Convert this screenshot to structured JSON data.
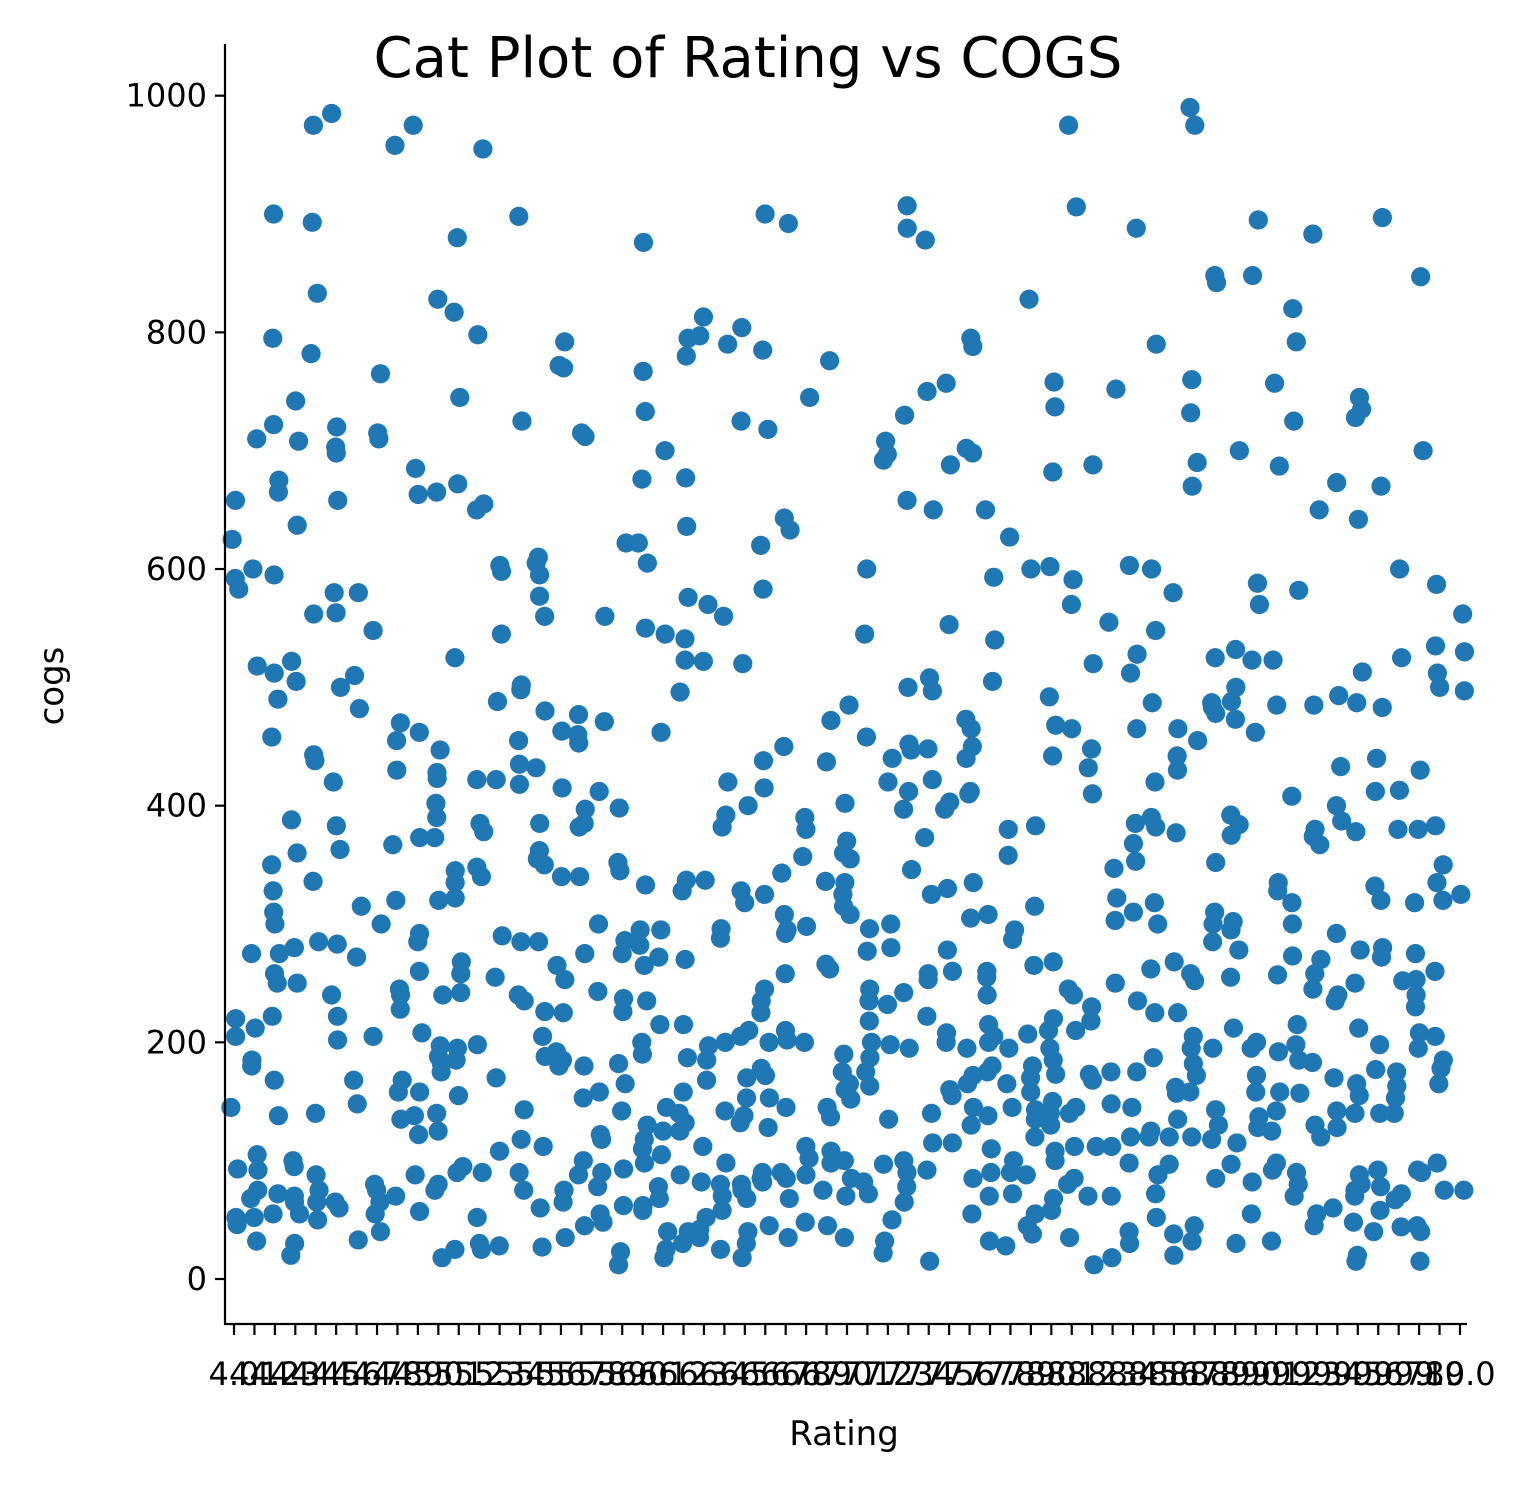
{
  "chart_data": {
    "type": "scatter",
    "title": "Cat Plot of Rating vs COGS",
    "xlabel": "Rating",
    "ylabel": "cogs",
    "point_color": "#1f77b4",
    "grid": false,
    "legend": "none",
    "ylim": [
      -40,
      1040
    ],
    "yticks": [
      0,
      200,
      400,
      600,
      800,
      1000
    ],
    "categories": [
      "4.0",
      "4.1",
      "4.2",
      "4.3",
      "4.4",
      "4.5",
      "4.6",
      "4.7",
      "4.8",
      "4.9",
      "5.0",
      "5.1",
      "5.2",
      "5.3",
      "5.4",
      "5.5",
      "5.6",
      "5.7",
      "5.8",
      "5.9",
      "6.0",
      "6.1",
      "6.2",
      "6.3",
      "6.4",
      "6.5",
      "6.6",
      "6.7",
      "6.8",
      "6.9",
      "7.0",
      "7.1",
      "7.2",
      "7.3",
      "7.4",
      "7.5",
      "7.6",
      "7.7",
      "7.8",
      "7.9",
      "8.0",
      "8.1",
      "8.2",
      "8.3",
      "8.4",
      "8.5",
      "8.6",
      "8.7",
      "8.8",
      "8.9",
      "9.0",
      "9.1",
      "9.2",
      "9.3",
      "9.4",
      "9.5",
      "9.6",
      "9.7",
      "9.8",
      "9.9",
      "10.0"
    ],
    "tick_labels": [
      "4.0",
      "4.1",
      "4.2",
      "4.3",
      "4.4",
      "4.5",
      "4.6",
      "4.7",
      "4.8",
      "4.9",
      "5.0",
      "5.1",
      "5.2",
      "5.3",
      "5.4",
      "5.5",
      "5.6",
      "5.7",
      "5.8",
      "5.9",
      "6.0",
      "6.1",
      "6.2",
      "6.3",
      "6.4",
      "6.5",
      "6.6",
      "6.7",
      "6.8",
      "6.9",
      "7.0",
      "7.1",
      "7.2",
      "7.3",
      "7.4",
      "7.5",
      "7.6",
      "7.7",
      "7.8",
      "7.9",
      "8.0",
      "8.1",
      "8.2",
      "8.3",
      "8.4",
      "8.5",
      "8.6",
      "8.7",
      "8.8",
      "8.9",
      "9.0",
      "9.1",
      "9.2",
      "9.3",
      "9.4",
      "9.5",
      "9.6",
      "9.7",
      "9.8",
      "9.9",
      "10.0"
    ],
    "values": [
      [
        658,
        625,
        592,
        583,
        220,
        205,
        145,
        93,
        52,
        46
      ],
      [
        710,
        600,
        518,
        275,
        212,
        185,
        180,
        105,
        92,
        75,
        68,
        52,
        32
      ],
      [
        900,
        795,
        722,
        675,
        665,
        595,
        512,
        490,
        458,
        350,
        328,
        310,
        300,
        275,
        258,
        250,
        222,
        168,
        138,
        72,
        55
      ],
      [
        742,
        708,
        637,
        522,
        505,
        388,
        360,
        280,
        250,
        100,
        95,
        70,
        65,
        55,
        30,
        20
      ],
      [
        975,
        893,
        833,
        782,
        562,
        443,
        438,
        336,
        285,
        140,
        88,
        75,
        65,
        50
      ],
      [
        985,
        720,
        703,
        698,
        658,
        580,
        563,
        500,
        420,
        383,
        363,
        283,
        240,
        222,
        202,
        65,
        60
      ],
      [
        580,
        510,
        482,
        315,
        272,
        168,
        148,
        33
      ],
      [
        765,
        715,
        710,
        548,
        300,
        205,
        80,
        75,
        65,
        55,
        40
      ],
      [
        958,
        470,
        455,
        430,
        367,
        320,
        245,
        240,
        228,
        168,
        158,
        135,
        70
      ],
      [
        975,
        685,
        663,
        462,
        373,
        292,
        285,
        260,
        208,
        158,
        138,
        122,
        88,
        57
      ],
      [
        828,
        665,
        447,
        428,
        423,
        402,
        390,
        373,
        320,
        240,
        197,
        188,
        182,
        175,
        140,
        125,
        80,
        75,
        18
      ],
      [
        880,
        817,
        745,
        672,
        525,
        345,
        335,
        322,
        268,
        258,
        242,
        195,
        185,
        155,
        95,
        90,
        25
      ],
      [
        955,
        798,
        655,
        650,
        422,
        385,
        378,
        348,
        340,
        198,
        90,
        52,
        30,
        25
      ],
      [
        603,
        598,
        545,
        488,
        422,
        290,
        255,
        170,
        108,
        28
      ],
      [
        898,
        725,
        502,
        498,
        455,
        435,
        418,
        285,
        240,
        235,
        143,
        118,
        90,
        75
      ],
      [
        610,
        605,
        595,
        577,
        560,
        480,
        432,
        385,
        362,
        355,
        350,
        285,
        226,
        205,
        188,
        112,
        60,
        27
      ],
      [
        792,
        772,
        770,
        463,
        415,
        340,
        265,
        253,
        225,
        192,
        185,
        180,
        75,
        65,
        35
      ],
      [
        715,
        712,
        477,
        460,
        453,
        397,
        385,
        382,
        340,
        275,
        180,
        153,
        100,
        88,
        45
      ],
      [
        560,
        471,
        412,
        300,
        243,
        158,
        122,
        118,
        90,
        78,
        55,
        48
      ],
      [
        622,
        398,
        352,
        345,
        286,
        275,
        237,
        226,
        182,
        165,
        142,
        93,
        62,
        23,
        12
      ],
      [
        876,
        767,
        733,
        676,
        622,
        605,
        550,
        333,
        295,
        282,
        265,
        235,
        200,
        190,
        130,
        118,
        110,
        98,
        62,
        58
      ],
      [
        700,
        545,
        462,
        295,
        272,
        215,
        145,
        125,
        105,
        78,
        68,
        40,
        25,
        18
      ],
      [
        795,
        780,
        677,
        636,
        576,
        541,
        523,
        496,
        337,
        328,
        270,
        215,
        187,
        158,
        140,
        132,
        125,
        88,
        40,
        30
      ],
      [
        813,
        797,
        570,
        522,
        337,
        197,
        185,
        168,
        112,
        82,
        52,
        42,
        35
      ],
      [
        790,
        560,
        420,
        392,
        382,
        296,
        288,
        200,
        142,
        98,
        80,
        70,
        58,
        25
      ],
      [
        804,
        725,
        520,
        400,
        328,
        318,
        210,
        205,
        170,
        153,
        138,
        132,
        80,
        75,
        68,
        40,
        30,
        18
      ],
      [
        900,
        785,
        718,
        620,
        583,
        438,
        415,
        325,
        245,
        235,
        225,
        200,
        178,
        172,
        153,
        128,
        90,
        85,
        82,
        45
      ],
      [
        892,
        643,
        633,
        450,
        343,
        308,
        295,
        292,
        258,
        210,
        202,
        145,
        90,
        85,
        68,
        35
      ],
      [
        745,
        390,
        380,
        357,
        298,
        200,
        112,
        102,
        88,
        48
      ],
      [
        776,
        472,
        437,
        336,
        266,
        262,
        145,
        137,
        108,
        98,
        75,
        45
      ],
      [
        485,
        402,
        370,
        360,
        355,
        335,
        325,
        315,
        308,
        190,
        175,
        165,
        160,
        152,
        100,
        85,
        70,
        35
      ],
      [
        600,
        545,
        458,
        296,
        277,
        245,
        235,
        218,
        200,
        187,
        175,
        163,
        82,
        72
      ],
      [
        708,
        697,
        692,
        440,
        420,
        300,
        280,
        232,
        198,
        135,
        97,
        50,
        32,
        22
      ],
      [
        907,
        888,
        730,
        658,
        500,
        452,
        447,
        412,
        397,
        346,
        242,
        195,
        100,
        90,
        78,
        65
      ],
      [
        878,
        750,
        650,
        508,
        497,
        448,
        422,
        373,
        325,
        258,
        253,
        222,
        140,
        115,
        92,
        15
      ],
      [
        757,
        688,
        553,
        403,
        397,
        330,
        278,
        260,
        208,
        200,
        160,
        155,
        115
      ],
      [
        795,
        788,
        702,
        698,
        473,
        465,
        450,
        440,
        412,
        410,
        335,
        305,
        195,
        172,
        165,
        145,
        130,
        85,
        55
      ],
      [
        650,
        593,
        540,
        505,
        308,
        260,
        255,
        240,
        215,
        205,
        200,
        180,
        175,
        138,
        110,
        90,
        70,
        32
      ],
      [
        627,
        380,
        358,
        295,
        287,
        195,
        165,
        145,
        100,
        90,
        72,
        28
      ],
      [
        828,
        600,
        383,
        315,
        265,
        207,
        180,
        170,
        158,
        143,
        135,
        120,
        88,
        55,
        45,
        38
      ],
      [
        758,
        737,
        682,
        602,
        492,
        468,
        442,
        268,
        220,
        210,
        195,
        185,
        173,
        150,
        140,
        130,
        108,
        100,
        68,
        58
      ],
      [
        975,
        906,
        591,
        570,
        465,
        245,
        240,
        210,
        145,
        140,
        112,
        85,
        80,
        35
      ],
      [
        688,
        520,
        448,
        432,
        410,
        230,
        218,
        173,
        168,
        112,
        70,
        12
      ],
      [
        752,
        555,
        347,
        322,
        303,
        250,
        175,
        148,
        112,
        70,
        18
      ],
      [
        888,
        603,
        528,
        512,
        465,
        385,
        368,
        353,
        310,
        235,
        175,
        145,
        120,
        98,
        40,
        30
      ],
      [
        790,
        600,
        548,
        487,
        420,
        390,
        382,
        318,
        300,
        262,
        225,
        187,
        125,
        120,
        88,
        72,
        52
      ],
      [
        580,
        465,
        442,
        430,
        377,
        268,
        225,
        162,
        157,
        135,
        120,
        97,
        38,
        20
      ],
      [
        990,
        975,
        760,
        732,
        690,
        670,
        455,
        258,
        252,
        205,
        195,
        182,
        172,
        158,
        120,
        45,
        32
      ],
      [
        848,
        842,
        525,
        487,
        483,
        478,
        352,
        310,
        300,
        285,
        195,
        143,
        130,
        118,
        85
      ],
      [
        700,
        532,
        500,
        488,
        473,
        392,
        384,
        375,
        302,
        295,
        278,
        255,
        212,
        115,
        97,
        30
      ],
      [
        895,
        848,
        588,
        570,
        523,
        462,
        200,
        195,
        172,
        158,
        137,
        128,
        82,
        55
      ],
      [
        757,
        687,
        523,
        485,
        335,
        328,
        257,
        192,
        158,
        142,
        125,
        98,
        92,
        32
      ],
      [
        820,
        792,
        725,
        582,
        408,
        318,
        300,
        273,
        215,
        198,
        185,
        157,
        90,
        80,
        70
      ],
      [
        883,
        650,
        485,
        380,
        374,
        367,
        270,
        258,
        245,
        183,
        130,
        120,
        55,
        45
      ],
      [
        673,
        493,
        433,
        400,
        387,
        292,
        240,
        235,
        170,
        142,
        128,
        60
      ],
      [
        745,
        735,
        728,
        642,
        513,
        487,
        378,
        278,
        250,
        212,
        165,
        155,
        140,
        88,
        80,
        75,
        70,
        48,
        20,
        15
      ],
      [
        897,
        670,
        483,
        440,
        412,
        332,
        320,
        280,
        272,
        198,
        177,
        140,
        92,
        78,
        58,
        40
      ],
      [
        600,
        525,
        413,
        380,
        252,
        175,
        163,
        153,
        140,
        72,
        67,
        44
      ],
      [
        847,
        700,
        430,
        380,
        318,
        275,
        253,
        240,
        230,
        208,
        195,
        92,
        90,
        45,
        40,
        15
      ],
      [
        587,
        535,
        512,
        500,
        383,
        350,
        335,
        320,
        260,
        205,
        185,
        178,
        165,
        98,
        75
      ],
      [
        562,
        530,
        497,
        325,
        75
      ]
    ]
  }
}
